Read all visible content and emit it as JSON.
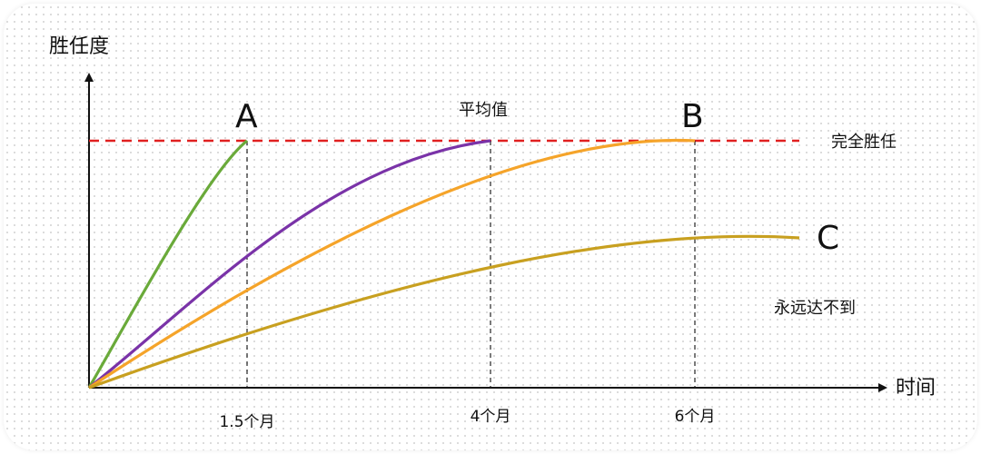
{
  "chart_data": {
    "type": "line",
    "ylabel": "胜任度",
    "xlabel": "时间",
    "x_ticks": [
      {
        "label": "1.5个月",
        "x": 1.5
      },
      {
        "label": "4个月",
        "x": 4
      },
      {
        "label": "6个月",
        "x": 6
      }
    ],
    "reference_line": {
      "label": "完全胜任",
      "y": 1.0,
      "color": "#e02020",
      "style": "dashed"
    },
    "annotations": {
      "average": "平均值",
      "never": "永远达不到"
    },
    "series": [
      {
        "name": "A",
        "color": "#6aaa3a",
        "points": [
          [
            0,
            0
          ],
          [
            1.2,
            0.9
          ],
          [
            1.5,
            1.0
          ]
        ]
      },
      {
        "name": "",
        "color": "#7a33a8",
        "points": [
          [
            0,
            0
          ],
          [
            2.0,
            0.55
          ],
          [
            3.6,
            0.99
          ],
          [
            4,
            1.0
          ]
        ]
      },
      {
        "name": "B",
        "color": "#f5a42a",
        "points": [
          [
            0,
            0
          ],
          [
            3.0,
            0.58
          ],
          [
            4.5,
            0.9
          ],
          [
            6,
            1.0
          ]
        ]
      },
      {
        "name": "C",
        "color": "#c8a020",
        "points": [
          [
            0,
            0
          ],
          [
            4,
            0.43
          ],
          [
            6,
            0.6
          ],
          [
            7,
            0.61
          ]
        ]
      }
    ]
  }
}
